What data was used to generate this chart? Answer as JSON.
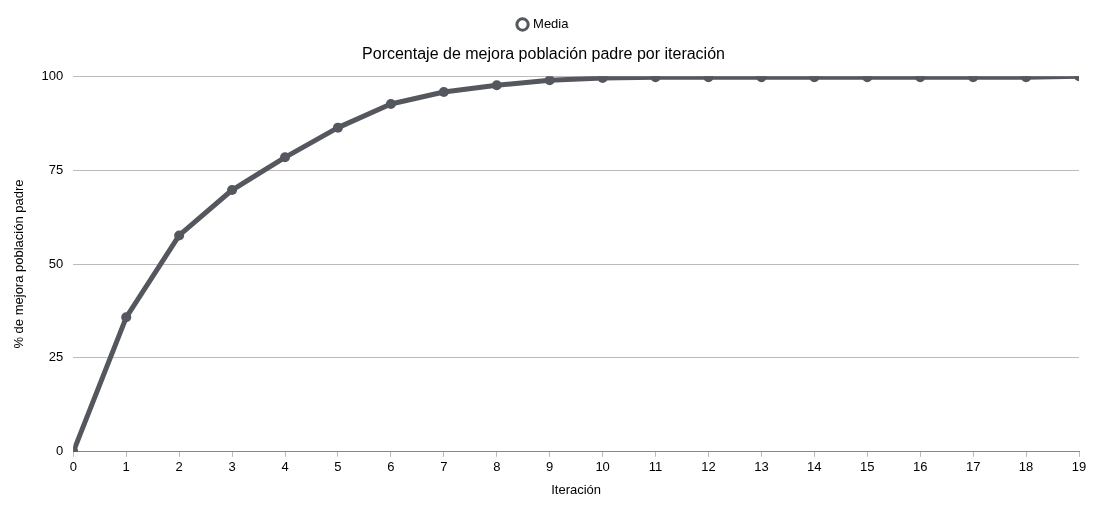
{
  "chart_data": {
    "type": "line",
    "title": "Porcentaje de mejora población padre por iteración",
    "xlabel": "Iteración",
    "ylabel": "% de mejora población padre",
    "x": [
      0,
      1,
      2,
      3,
      4,
      5,
      6,
      7,
      8,
      9,
      10,
      11,
      12,
      13,
      14,
      15,
      16,
      17,
      18,
      19
    ],
    "series": [
      {
        "name": "Media",
        "color": "#55575e",
        "values": [
          0,
          35.8,
          57.6,
          69.7,
          78.4,
          86.3,
          92.6,
          95.8,
          97.6,
          98.9,
          99.5,
          99.7,
          99.7,
          99.7,
          99.7,
          99.7,
          99.7,
          99.7,
          99.7,
          100
        ]
      }
    ],
    "xlim": [
      0,
      19
    ],
    "xticks": [
      0,
      1,
      2,
      3,
      4,
      5,
      6,
      7,
      8,
      9,
      10,
      11,
      12,
      13,
      14,
      15,
      16,
      17,
      18,
      19
    ],
    "ylim": [
      0,
      100
    ],
    "yticks": [
      0,
      25,
      50,
      75,
      100
    ],
    "grid": "y",
    "legend": "top",
    "marker": "circle",
    "line_style": "solid"
  }
}
